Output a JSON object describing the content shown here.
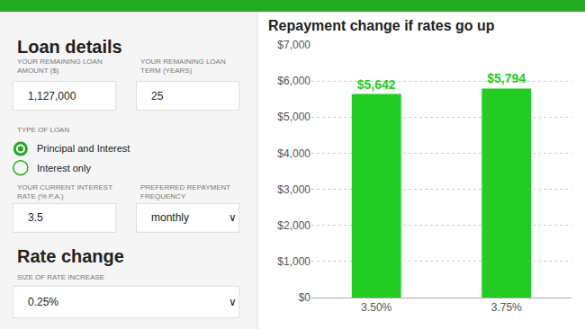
{
  "chart_data": {
    "type": "bar",
    "title": "Repayment change if rates go up",
    "categories": [
      "3.50%",
      "3.75%"
    ],
    "values": [
      5642,
      5794
    ],
    "value_labels": [
      "$5,642",
      "$5,794"
    ],
    "data_labels": true,
    "color": "#22cc22",
    "ylim": [
      0,
      7000
    ],
    "yticks": [
      {
        "value": 0,
        "label": "$0"
      },
      {
        "value": 1000,
        "label": "$1,000"
      },
      {
        "value": 2000,
        "label": "$2,000"
      },
      {
        "value": 3000,
        "label": "$3,000"
      },
      {
        "value": 4000,
        "label": "$4,000"
      },
      {
        "value": 5000,
        "label": "$5,000"
      },
      {
        "value": 6000,
        "label": "$6,000"
      },
      {
        "value": 7000,
        "label": "$7,000"
      }
    ],
    "grid": true,
    "annotations": [
      "Loan details",
      "YOUR REMAINING LOAN\nAMOUNT ($)",
      "YOUR REMAINING LOAN\nTERM (YEARS)",
      "1,127,000",
      "25",
      "TYPE OF LOAN",
      "Principal and Interest",
      "Interest only",
      "YOUR CURRENT INTEREST\nRATE (% P.A.)",
      "PREFERRED REPAYMENT\nFREQUENCY",
      "3.5",
      "monthly",
      "∨",
      "Rate change",
      "SIZE OF RATE INCREASE",
      "0.25%",
      "∨"
    ]
  }
}
